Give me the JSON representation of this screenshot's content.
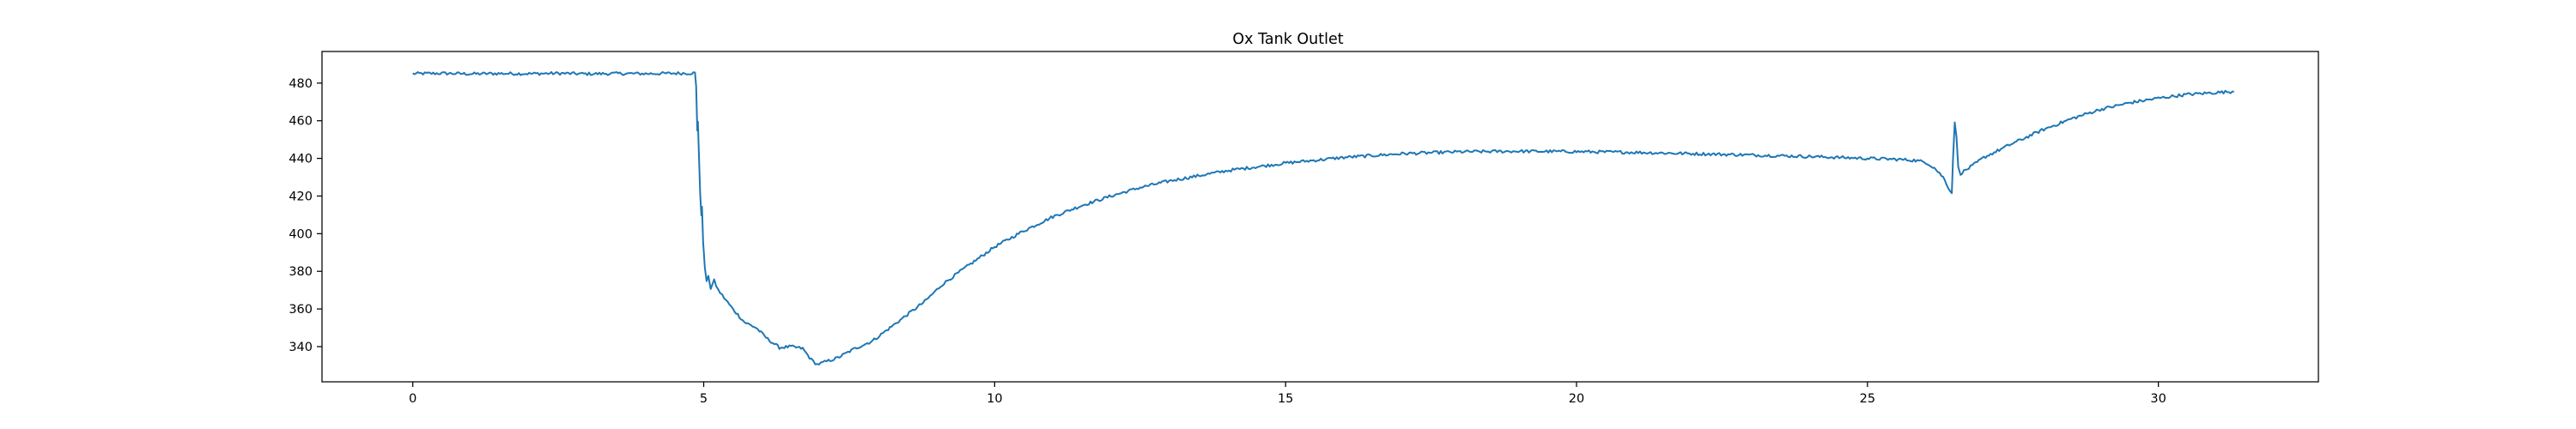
{
  "chart_data": {
    "type": "line",
    "title": "Ox Tank Outlet",
    "xlabel": "",
    "ylabel": "",
    "xlim": [
      -1.56,
      32.75
    ],
    "ylim": [
      321.3,
      496.8
    ],
    "x_ticks": [
      0,
      5,
      10,
      15,
      20,
      25,
      30
    ],
    "y_ticks": [
      340,
      360,
      380,
      400,
      420,
      440,
      460,
      480
    ],
    "grid": false,
    "legend": "none",
    "series": [
      {
        "color": "#1f77b4",
        "points": [
          [
            0.0,
            485.0
          ],
          [
            0.5,
            485.2
          ],
          [
            1.0,
            484.9
          ],
          [
            1.5,
            485.1
          ],
          [
            2.0,
            485.0
          ],
          [
            2.5,
            485.2
          ],
          [
            3.0,
            484.9
          ],
          [
            3.5,
            485.1
          ],
          [
            4.0,
            485.0
          ],
          [
            4.5,
            485.2
          ],
          [
            4.85,
            485.3
          ],
          [
            4.87,
            478.0
          ],
          [
            4.89,
            455.0
          ],
          [
            4.9,
            460.0
          ],
          [
            4.92,
            440.0
          ],
          [
            4.94,
            420.0
          ],
          [
            4.96,
            410.0
          ],
          [
            4.97,
            415.0
          ],
          [
            4.99,
            395.0
          ],
          [
            5.02,
            382.0
          ],
          [
            5.05,
            374.0
          ],
          [
            5.08,
            378.0
          ],
          [
            5.12,
            371.0
          ],
          [
            5.18,
            375.0
          ],
          [
            5.25,
            370.0
          ],
          [
            5.35,
            366.0
          ],
          [
            5.5,
            360.0
          ],
          [
            5.7,
            353.0
          ],
          [
            5.9,
            350.0
          ],
          [
            6.1,
            344.0
          ],
          [
            6.3,
            339.5
          ],
          [
            6.5,
            340.0
          ],
          [
            6.7,
            339.0
          ],
          [
            6.85,
            333.0
          ],
          [
            6.95,
            330.5
          ],
          [
            7.05,
            331.5
          ],
          [
            7.3,
            334.0
          ],
          [
            7.6,
            339.0
          ],
          [
            7.9,
            343.0
          ],
          [
            8.2,
            350.0
          ],
          [
            8.5,
            357.0
          ],
          [
            8.8,
            364.0
          ],
          [
            9.1,
            373.0
          ],
          [
            9.5,
            382.0
          ],
          [
            10.0,
            393.0
          ],
          [
            10.5,
            401.5
          ],
          [
            11.0,
            409.0
          ],
          [
            11.5,
            415.0
          ],
          [
            12.0,
            420.0
          ],
          [
            12.5,
            424.5
          ],
          [
            13.0,
            428.0
          ],
          [
            14.0,
            433.5
          ],
          [
            15.0,
            437.5
          ],
          [
            16.0,
            440.5
          ],
          [
            17.0,
            442.5
          ],
          [
            18.0,
            443.5
          ],
          [
            19.0,
            443.8
          ],
          [
            20.0,
            443.6
          ],
          [
            21.0,
            443.2
          ],
          [
            22.0,
            442.5
          ],
          [
            23.0,
            441.8
          ],
          [
            24.0,
            441.0
          ],
          [
            25.0,
            440.0
          ],
          [
            25.5,
            439.5
          ],
          [
            25.8,
            439.0
          ],
          [
            26.0,
            438.0
          ],
          [
            26.15,
            435.0
          ],
          [
            26.3,
            430.0
          ],
          [
            26.42,
            423.0
          ],
          [
            26.45,
            421.5
          ],
          [
            26.47,
            440.0
          ],
          [
            26.5,
            458.5
          ],
          [
            26.53,
            452.0
          ],
          [
            26.56,
            435.0
          ],
          [
            26.6,
            432.0
          ],
          [
            26.8,
            436.0
          ],
          [
            27.0,
            440.5
          ],
          [
            27.5,
            448.0
          ],
          [
            28.0,
            455.0
          ],
          [
            28.5,
            461.0
          ],
          [
            29.0,
            466.0
          ],
          [
            29.5,
            469.5
          ],
          [
            30.0,
            472.0
          ],
          [
            30.5,
            474.0
          ],
          [
            31.0,
            475.0
          ],
          [
            31.3,
            475.5
          ]
        ]
      }
    ]
  }
}
